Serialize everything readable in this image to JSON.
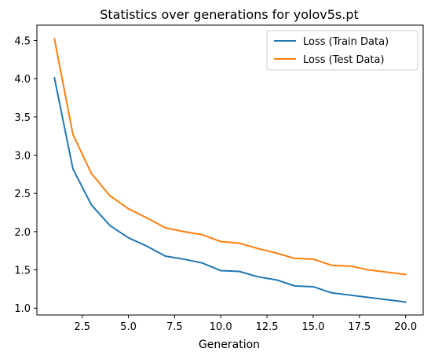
{
  "chart_data": {
    "type": "line",
    "title": "Statistics over generations for yolov5s.pt",
    "xlabel": "Generation",
    "ylabel": "",
    "xlim": [
      0.05,
      20.95
    ],
    "ylim": [
      0.91,
      4.7
    ],
    "xticks": [
      2.5,
      5.0,
      7.5,
      10.0,
      12.5,
      15.0,
      17.5,
      20.0
    ],
    "xtick_labels": [
      "2.5",
      "5.0",
      "7.5",
      "10.0",
      "12.5",
      "15.0",
      "17.5",
      "20.0"
    ],
    "yticks": [
      1.0,
      1.5,
      2.0,
      2.5,
      3.0,
      3.5,
      4.0,
      4.5
    ],
    "ytick_labels": [
      "1.0",
      "1.5",
      "2.0",
      "2.5",
      "3.0",
      "3.5",
      "4.0",
      "4.5"
    ],
    "grid": false,
    "legend_position": "top-right",
    "x": [
      1,
      2,
      3,
      4,
      5,
      6,
      7,
      8,
      9,
      10,
      11,
      12,
      13,
      14,
      15,
      16,
      17,
      18,
      19,
      20
    ],
    "series": [
      {
        "name": "Loss (Train Data)",
        "color": "#1f77b4",
        "values": [
          4.01,
          2.82,
          2.35,
          2.08,
          1.92,
          1.81,
          1.68,
          1.64,
          1.59,
          1.49,
          1.48,
          1.41,
          1.37,
          1.29,
          1.28,
          1.2,
          1.17,
          1.14,
          1.11,
          1.08
        ]
      },
      {
        "name": "Loss (Test Data)",
        "color": "#ff7f0e",
        "values": [
          4.52,
          3.27,
          2.76,
          2.47,
          2.3,
          2.18,
          2.05,
          2.0,
          1.96,
          1.87,
          1.85,
          1.78,
          1.72,
          1.65,
          1.64,
          1.56,
          1.55,
          1.5,
          1.47,
          1.44
        ]
      }
    ]
  }
}
